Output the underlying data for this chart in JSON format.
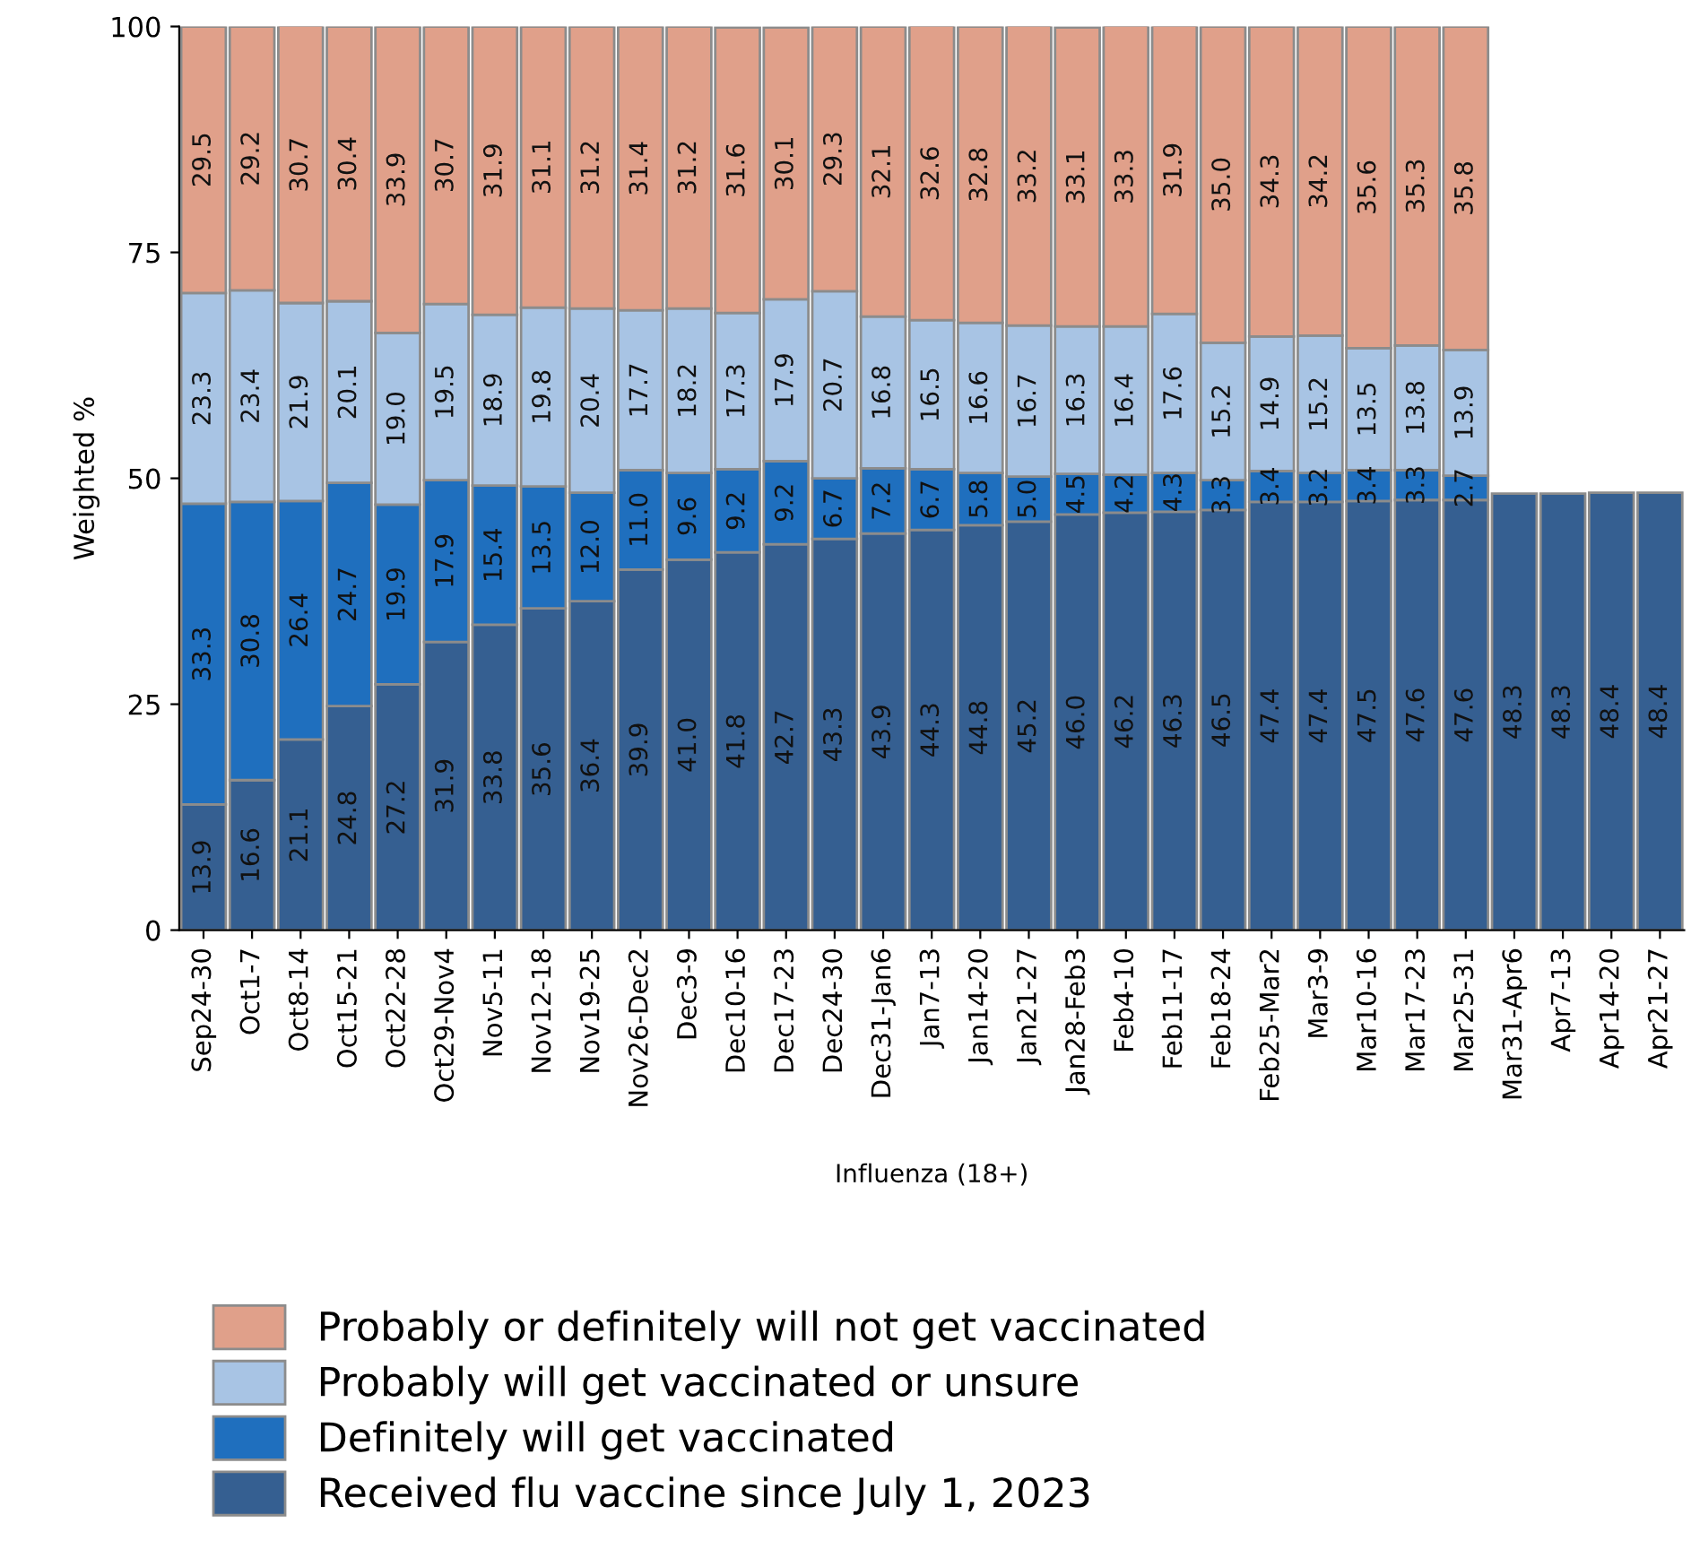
{
  "chart_data": {
    "type": "bar",
    "stacked": true,
    "xlabel": "Influenza (18+)",
    "ylabel": "Weighted %",
    "ylim": [
      0,
      100
    ],
    "yticks": [
      0,
      25,
      50,
      75,
      100
    ],
    "grid": false,
    "legend": "bottom",
    "categories": [
      "Sep24-30",
      "Oct1-7",
      "Oct8-14",
      "Oct15-21",
      "Oct22-28",
      "Oct29-Nov4",
      "Nov5-11",
      "Nov12-18",
      "Nov19-25",
      "Nov26-Dec2",
      "Dec3-9",
      "Dec10-16",
      "Dec17-23",
      "Dec24-30",
      "Dec31-Jan6",
      "Jan7-13",
      "Jan14-20",
      "Jan21-27",
      "Jan28-Feb3",
      "Feb4-10",
      "Feb11-17",
      "Feb18-24",
      "Feb25-Mar2",
      "Mar3-9",
      "Mar10-16",
      "Mar17-23",
      "Mar25-31",
      "Mar31-Apr6",
      "Apr7-13",
      "Apr14-20",
      "Apr21-27"
    ],
    "series": [
      {
        "name": "Received flu vaccine since July 1, 2023",
        "color": "#355f91",
        "values": [
          13.9,
          16.6,
          21.1,
          24.8,
          27.2,
          31.9,
          33.8,
          35.6,
          36.4,
          39.9,
          41.0,
          41.8,
          42.7,
          43.3,
          43.9,
          44.3,
          44.8,
          45.2,
          46.0,
          46.2,
          46.3,
          46.5,
          47.4,
          47.4,
          47.5,
          47.6,
          47.6,
          48.3,
          48.3,
          48.4,
          48.4
        ],
        "value_labels": [
          "13.9",
          "16.6",
          "21.1",
          "24.8",
          "27.2",
          "31.9",
          "33.8",
          "35.6",
          "36.4",
          "39.9",
          "41.0",
          "41.8",
          "42.7",
          "43.3",
          "43.9",
          "44.3",
          "44.8",
          "45.2",
          "46.0",
          "46.2",
          "46.3",
          "46.5",
          "47.4",
          "47.4",
          "47.5",
          "47.6",
          "47.6",
          "48.3",
          "48.3",
          "48.4",
          "48.4"
        ]
      },
      {
        "name": "Definitely will get vaccinated",
        "color": "#1f6fbe",
        "values": [
          33.3,
          30.8,
          26.4,
          24.7,
          19.9,
          17.9,
          15.4,
          13.5,
          12.0,
          11.0,
          9.6,
          9.2,
          9.2,
          6.7,
          7.2,
          6.7,
          5.8,
          5.0,
          4.5,
          4.2,
          4.3,
          3.3,
          3.4,
          3.2,
          3.4,
          3.3,
          2.7,
          null,
          null,
          null,
          null
        ],
        "value_labels": [
          "33.3",
          "30.8",
          "26.4",
          "24.7",
          "19.9",
          "17.9",
          "15.4",
          "13.5",
          "12.0",
          "11.0",
          "9.6",
          "9.2",
          "9.2",
          "6.7",
          "7.2",
          "6.7",
          "5.8",
          "5.0",
          "4.5",
          "4.2",
          "4.3",
          "3.3",
          "3.4",
          "3.2",
          "3.4",
          "3.3",
          "2.7",
          null,
          null,
          null,
          null
        ]
      },
      {
        "name": "Probably will get vaccinated or unsure",
        "color": "#a8c4e4",
        "values": [
          23.3,
          23.4,
          21.9,
          20.1,
          19.0,
          19.5,
          18.9,
          19.8,
          20.4,
          17.7,
          18.2,
          17.3,
          17.9,
          20.7,
          16.8,
          16.5,
          16.6,
          16.7,
          16.3,
          16.4,
          17.6,
          15.2,
          14.9,
          15.2,
          13.5,
          13.8,
          13.9,
          null,
          null,
          null,
          null
        ],
        "value_labels": [
          "23.3",
          "23.4",
          "21.9",
          "20.1",
          "19.0",
          "19.5",
          "18.9",
          "19.8",
          "20.4",
          "17.7",
          "18.2",
          "17.3",
          "17.9",
          "20.7",
          "16.8",
          "16.5",
          "16.6",
          "16.7",
          "16.3",
          "16.4",
          "17.6",
          "15.2",
          "14.9",
          "15.2",
          "13.5",
          "13.8",
          "13.9",
          null,
          null,
          null,
          null
        ]
      },
      {
        "name": "Probably or definitely will not get vaccinated",
        "color": "#e0a08a",
        "values": [
          29.5,
          29.2,
          30.7,
          30.4,
          33.9,
          30.7,
          31.9,
          31.1,
          31.2,
          31.4,
          31.2,
          31.6,
          30.1,
          29.3,
          32.1,
          32.6,
          32.8,
          33.2,
          33.1,
          33.3,
          31.9,
          35.0,
          34.3,
          34.2,
          35.6,
          35.3,
          35.8,
          null,
          null,
          null,
          null
        ],
        "value_labels": [
          "29.5",
          "29.2",
          "30.7",
          "30.4",
          "33.9",
          "30.7",
          "31.9",
          "31.1",
          "31.2",
          "31.4",
          "31.2",
          "31.6",
          "30.1",
          "29.3",
          "32.1",
          "32.6",
          "32.8",
          "33.2",
          "33.1",
          "33.3",
          "31.9",
          "35.0",
          "34.3",
          "34.2",
          "35.6",
          "35.3",
          "35.8",
          null,
          null,
          null,
          null
        ]
      }
    ]
  }
}
